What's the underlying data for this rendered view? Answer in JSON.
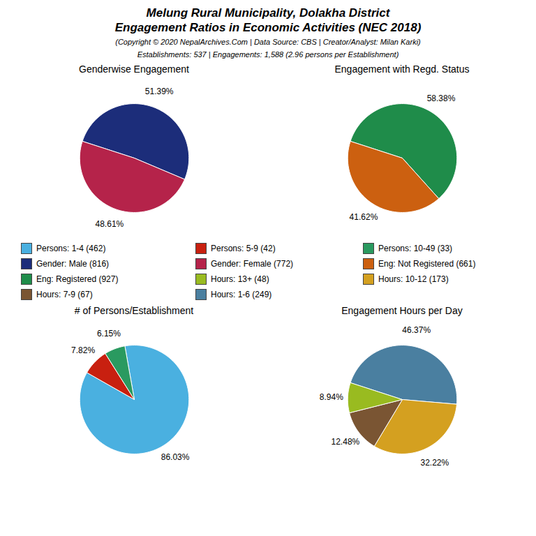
{
  "title": [
    "Melung Rural Municipality, Dolakha District",
    "Engagement Ratios in Economic Activities (NEC 2018)"
  ],
  "subtitle": [
    "(Copyright © 2020 NepalArchives.Com | Data Source: CBS | Creator/Analyst: Milan Karki)",
    "Establishments: 537 | Engagements: 1,588 (2.96 persons per Establishment)"
  ],
  "chart_data": [
    {
      "type": "pie",
      "title": "Genderwise Engagement",
      "values": [
        51.39,
        48.61
      ],
      "value_labels": [
        "51.39%",
        "48.61%"
      ],
      "colors": [
        "#1c2d7a",
        "#b5234a"
      ],
      "data_labels": true
    },
    {
      "type": "pie",
      "title": "Engagement with Regd. Status",
      "values": [
        58.38,
        41.62
      ],
      "value_labels": [
        "58.38%",
        "41.62%"
      ],
      "colors": [
        "#1f8c4a",
        "#cc6010"
      ],
      "data_labels": true
    },
    {
      "type": "pie",
      "title": "# of Persons/Establishment",
      "values": [
        86.03,
        7.82,
        6.15
      ],
      "value_labels": [
        "86.03%",
        "7.82%",
        "6.15%"
      ],
      "colors": [
        "#4ab0e0",
        "#c82010",
        "#2a9a60"
      ],
      "data_labels": true
    },
    {
      "type": "pie",
      "title": "Engagement Hours per Day",
      "values": [
        46.37,
        32.22,
        12.48,
        8.94
      ],
      "value_labels": [
        "46.37%",
        "32.22%",
        "12.48%",
        "8.94%"
      ],
      "colors": [
        "#4a7fa0",
        "#d4a020",
        "#7a5533",
        "#99bb20"
      ],
      "data_labels": true
    }
  ],
  "legend_items": [
    {
      "name": "Persons: 1-4 (462)",
      "color": "#4ab0e0"
    },
    {
      "name": "Persons: 5-9 (42)",
      "color": "#c82010"
    },
    {
      "name": "Persons: 10-49 (33)",
      "color": "#2a9a60"
    },
    {
      "name": "Gender: Male (816)",
      "color": "#1c2d7a"
    },
    {
      "name": "Gender: Female (772)",
      "color": "#b5234a"
    },
    {
      "name": "Eng: Not Registered (661)",
      "color": "#cc6010"
    },
    {
      "name": "Eng: Registered (927)",
      "color": "#1f8c4a"
    },
    {
      "name": "Hours: 13+ (48)",
      "color": "#99bb20"
    },
    {
      "name": "Hours: 10-12 (173)",
      "color": "#d4a020"
    },
    {
      "name": "Hours: 7-9 (67)",
      "color": "#7a5533"
    },
    {
      "name": "Hours: 1-6 (249)",
      "color": "#4a7fa0"
    }
  ]
}
